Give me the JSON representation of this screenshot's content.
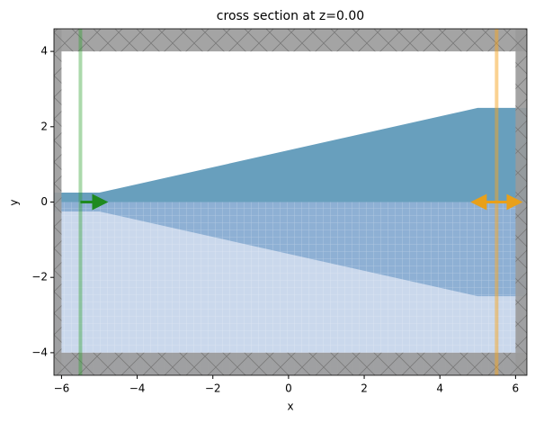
{
  "chart_data": {
    "type": "structure",
    "title": "cross section at z=0.00",
    "x_label": "x",
    "y_label": "y",
    "xlim": [
      -6.2,
      6.3
    ],
    "ylim": [
      -4.6,
      4.6
    ],
    "xticks": [
      {
        "value": -6,
        "label": "−6"
      },
      {
        "value": -4,
        "label": "−4"
      },
      {
        "value": -2,
        "label": "−2"
      },
      0,
      2,
      4,
      6
    ],
    "yticks": [
      {
        "value": -4,
        "label": "−4"
      },
      {
        "value": -2,
        "label": "−2"
      },
      0,
      2,
      4
    ],
    "polygons": [
      {
        "color": "#cad8ec",
        "x": [
          -6.2,
          6.3,
          6.3,
          -6.2
        ],
        "y": [
          -4.6,
          -4.6,
          0,
          0
        ]
      },
      {
        "color": "#8eb0d4",
        "x": [
          -6.2,
          6.3,
          6.3,
          5,
          -5,
          -6.2
        ],
        "y": [
          0,
          0,
          -2.5,
          -2.5,
          -0.25,
          -0.25
        ]
      },
      {
        "color": "#689fbd",
        "x": [
          -6.2,
          -6.2,
          -5,
          5,
          6.3,
          6.3
        ],
        "y": [
          0,
          0.25,
          0.25,
          2.5,
          2.5,
          0
        ]
      }
    ],
    "pml": [
      {
        "x": [
          -6.2,
          6.3,
          6.3,
          -6.2
        ],
        "y": [
          4,
          4,
          4.6,
          4.6
        ]
      },
      {
        "x": [
          -6.2,
          6.3,
          6.3,
          -6.2
        ],
        "y": [
          -4.6,
          -4.6,
          -4,
          -4
        ]
      },
      {
        "x": [
          -6.2,
          -6,
          -6,
          -6.2
        ],
        "y": [
          -4.6,
          -4.6,
          4.6,
          4.6
        ]
      },
      {
        "x": [
          6,
          6.3,
          6.3,
          6
        ],
        "y": [
          -4.6,
          -4.6,
          4.6,
          4.6
        ]
      }
    ],
    "source": {
      "x": -5.5,
      "color": "#2ca02c"
    },
    "monitor": {
      "x": 5.5,
      "color": "#f5a623"
    }
  }
}
